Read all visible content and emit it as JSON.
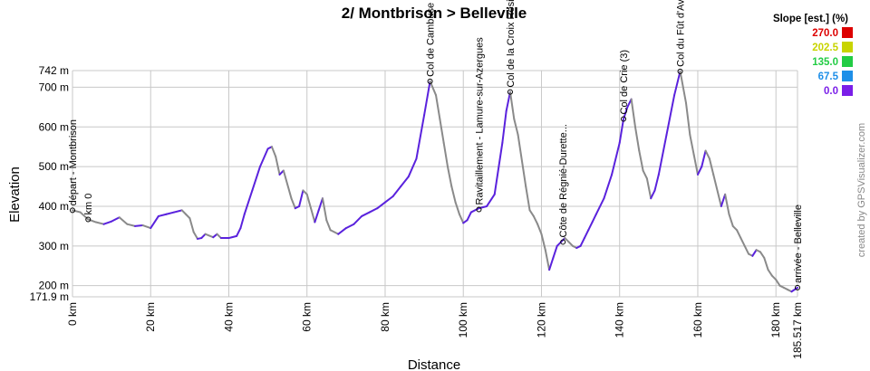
{
  "chart_data": {
    "type": "line",
    "title": "2/ Montbrison > Belleville",
    "xlabel": "Distance",
    "ylabel": "Elevation",
    "xlim": [
      0,
      185.517
    ],
    "ylim": [
      171.9,
      742
    ],
    "x_ticks": [
      {
        "value": 0,
        "label": "0 km"
      },
      {
        "value": 20,
        "label": "20 km"
      },
      {
        "value": 40,
        "label": "40 km"
      },
      {
        "value": 60,
        "label": "60 km"
      },
      {
        "value": 80,
        "label": "80 km"
      },
      {
        "value": 100,
        "label": "100 km"
      },
      {
        "value": 120,
        "label": "120 km"
      },
      {
        "value": 140,
        "label": "140 km"
      },
      {
        "value": 160,
        "label": "160 km"
      },
      {
        "value": 180,
        "label": "180 km"
      },
      {
        "value": 185.517,
        "label": "185.517 km"
      }
    ],
    "y_ticks": [
      {
        "value": 171.9,
        "label": "171.9 m"
      },
      {
        "value": 200,
        "label": "200 m"
      },
      {
        "value": 300,
        "label": "300 m"
      },
      {
        "value": 400,
        "label": "400 m"
      },
      {
        "value": 500,
        "label": "500 m"
      },
      {
        "value": 600,
        "label": "600 m"
      },
      {
        "value": 700,
        "label": "700 m"
      },
      {
        "value": 742,
        "label": "742 m"
      }
    ],
    "grid": true,
    "series": [
      {
        "x": [
          0,
          2,
          4,
          6,
          8,
          10,
          12,
          14,
          16,
          18,
          20,
          22,
          24,
          26,
          28,
          29,
          30,
          31,
          32,
          33,
          34,
          36,
          37,
          38,
          40,
          42,
          43,
          44,
          46,
          48,
          50,
          51,
          52,
          53,
          54,
          56,
          57,
          58,
          59,
          60,
          61,
          62,
          63,
          64,
          65,
          66,
          68,
          70,
          72,
          74,
          76,
          78,
          80,
          82,
          84,
          86,
          88,
          90,
          91.5,
          93,
          94,
          95,
          96,
          97,
          98,
          99,
          100,
          101,
          102,
          104,
          106,
          108,
          110,
          111,
          112,
          113,
          114,
          116,
          117,
          118,
          119,
          120,
          121,
          122,
          123,
          124,
          125,
          126,
          127,
          128,
          129,
          130,
          131,
          132,
          133,
          134,
          136,
          138,
          140,
          141,
          142,
          143,
          144,
          145,
          146,
          147,
          148,
          149,
          150,
          152,
          154,
          155.5,
          157,
          158,
          159,
          160,
          161,
          162,
          163,
          164,
          166,
          167,
          168,
          169,
          170,
          171,
          172,
          173,
          174,
          175,
          176,
          177,
          178,
          179,
          180,
          181,
          182,
          183,
          184,
          185.517
        ],
        "y": [
          390,
          385,
          367,
          360,
          355,
          362,
          372,
          355,
          350,
          352,
          345,
          375,
          380,
          385,
          390,
          380,
          370,
          335,
          318,
          320,
          330,
          322,
          330,
          320,
          320,
          325,
          345,
          380,
          440,
          500,
          545,
          550,
          525,
          480,
          490,
          420,
          395,
          400,
          440,
          430,
          395,
          360,
          390,
          420,
          365,
          340,
          330,
          345,
          355,
          375,
          385,
          395,
          410,
          425,
          450,
          475,
          520,
          630,
          715,
          680,
          620,
          560,
          500,
          450,
          410,
          380,
          358,
          365,
          385,
          395,
          400,
          430,
          560,
          640,
          688,
          620,
          580,
          450,
          390,
          375,
          355,
          330,
          290,
          240,
          270,
          300,
          310,
          320,
          310,
          300,
          295,
          300,
          320,
          340,
          360,
          380,
          420,
          480,
          560,
          620,
          650,
          670,
          600,
          540,
          490,
          470,
          420,
          440,
          480,
          580,
          680,
          740,
          660,
          580,
          530,
          480,
          500,
          540,
          520,
          480,
          400,
          430,
          380,
          350,
          340,
          320,
          300,
          280,
          275,
          290,
          285,
          270,
          240,
          225,
          215,
          200,
          195,
          190,
          185,
          195
        ]
      }
    ],
    "waypoints": [
      {
        "x": 0,
        "y": 390,
        "label": "départ - Montbrison"
      },
      {
        "x": 4,
        "y": 367,
        "label": "km 0"
      },
      {
        "x": 91.5,
        "y": 715,
        "label": "Col de Cambuse"
      },
      {
        "x": 104,
        "y": 392,
        "label": "Ravitaillement - Lamure-sur-Azergues"
      },
      {
        "x": 112,
        "y": 688,
        "label": "Col de la Croix Rosier"
      },
      {
        "x": 125.5,
        "y": 310,
        "label": "Côte de Régnié-Durette..."
      },
      {
        "x": 141,
        "y": 620,
        "label": "Col de Crie (3)"
      },
      {
        "x": 155.5,
        "y": 740,
        "label": "Col du Fût d'Avenas"
      },
      {
        "x": 185.517,
        "y": 195,
        "label": "arrivée - Belleville"
      }
    ]
  },
  "legend": {
    "title": "Slope [est.] (%)",
    "items": [
      {
        "value": "270.0",
        "color": "#dd0000"
      },
      {
        "value": "202.5",
        "color": "#c8d400"
      },
      {
        "value": "135.0",
        "color": "#22cc44"
      },
      {
        "value": "67.5",
        "color": "#1e8fe8"
      },
      {
        "value": "0.0",
        "color": "#7a1ee8"
      }
    ]
  },
  "credit": "created by GPSVisualizer.com",
  "colors": {
    "line_primary": "#5a22dd",
    "line_secondary": "#8a8a8a"
  }
}
